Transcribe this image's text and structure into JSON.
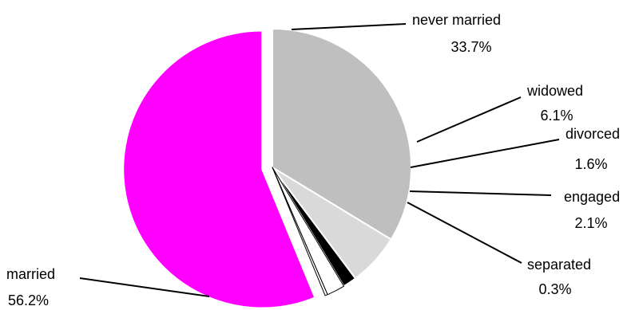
{
  "chart_data": {
    "type": "pie",
    "start_angle_deg": 0,
    "direction": "clockwise",
    "slices": [
      {
        "label": "never married",
        "value": 33.7,
        "value_label": "33.7%",
        "color": "#bfbfbf",
        "exploded": false
      },
      {
        "label": "widowed",
        "value": 6.1,
        "value_label": "6.1%",
        "color": "#d9d9d9",
        "exploded": false
      },
      {
        "label": "divorced",
        "value": 1.6,
        "value_label": "1.6%",
        "color": "#000000",
        "exploded": false
      },
      {
        "label": "engaged",
        "value": 2.1,
        "value_label": "2.1%",
        "color": "#ffffff",
        "exploded": false
      },
      {
        "label": "separated",
        "value": 0.3,
        "value_label": "0.3%",
        "color": "#ffffff",
        "exploded": false
      },
      {
        "label": "married",
        "value": 56.2,
        "value_label": "56.2%",
        "color": "#ff00ff",
        "exploded": true
      }
    ]
  }
}
